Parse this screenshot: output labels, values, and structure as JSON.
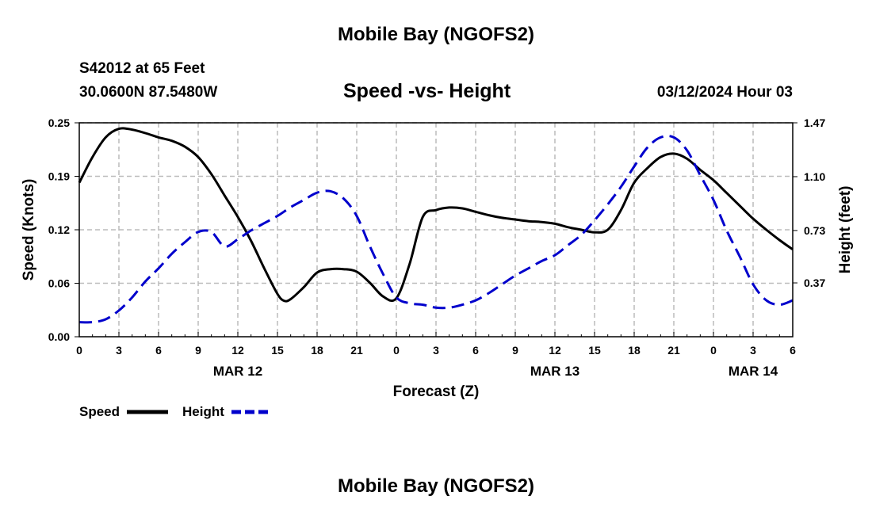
{
  "header": {
    "title": "Mobile Bay (NGOFS2)",
    "station": "S42012 at 65 Feet",
    "coords": "30.0600N  87.5480W",
    "subtitle": "Speed -vs- Height",
    "timestamp": "03/12/2024 Hour 03"
  },
  "footer": {
    "title": "Mobile Bay (NGOFS2)"
  },
  "colors": {
    "speed": "#000000",
    "height": "#0000cc",
    "grid": "#bbbbbb"
  },
  "chart_data": {
    "type": "line",
    "title": "Speed -vs- Height",
    "xlabel": "Forecast (Z)",
    "ylabel": "Speed (Knots)",
    "y2label": "Height (feet)",
    "x_range_hours": [
      0,
      54
    ],
    "x_ticks": [
      "0",
      "3",
      "6",
      "9",
      "12",
      "15",
      "18",
      "21",
      "0",
      "3",
      "6",
      "9",
      "12",
      "15",
      "18",
      "21",
      "0",
      "3",
      "6"
    ],
    "x_tick_hours": [
      0,
      3,
      6,
      9,
      12,
      15,
      18,
      21,
      24,
      27,
      30,
      33,
      36,
      39,
      42,
      45,
      48,
      51,
      54
    ],
    "date_labels": [
      {
        "label": "MAR 12",
        "hour": 12
      },
      {
        "label": "MAR 13",
        "hour": 36
      },
      {
        "label": "MAR 14",
        "hour": 51
      }
    ],
    "ylim": [
      0,
      0.25
    ],
    "y_ticks": [
      "0.00",
      "0.06",
      "0.12",
      "0.19",
      "0.25"
    ],
    "y_tick_values": [
      0,
      0.0625,
      0.125,
      0.1875,
      0.25
    ],
    "y2lim": [
      0,
      1.47
    ],
    "y2_ticks": [
      "0.37",
      "0.73",
      "1.10",
      "1.47"
    ],
    "y2_tick_values": [
      0.37,
      0.73,
      1.1,
      1.47
    ],
    "grid": true,
    "legend_position": "bottom-left",
    "series": [
      {
        "name": "Speed",
        "axis": "left",
        "style": "solid",
        "x": [
          0,
          1,
          2,
          3,
          4,
          5,
          6,
          7,
          8,
          9,
          10,
          11,
          12,
          13,
          14,
          15,
          15.5,
          16,
          17,
          18,
          19,
          20,
          21,
          22,
          23,
          24,
          25,
          26,
          27,
          28,
          29,
          30,
          31,
          32,
          33,
          34,
          35,
          36,
          37,
          38,
          39,
          40,
          41,
          42,
          43,
          44,
          45,
          46,
          47,
          48,
          49,
          50,
          51,
          52,
          53,
          54
        ],
        "values": [
          0.18,
          0.21,
          0.233,
          0.243,
          0.242,
          0.238,
          0.233,
          0.229,
          0.222,
          0.21,
          0.19,
          0.165,
          0.14,
          0.112,
          0.08,
          0.05,
          0.042,
          0.044,
          0.058,
          0.075,
          0.079,
          0.079,
          0.076,
          0.063,
          0.047,
          0.045,
          0.085,
          0.14,
          0.148,
          0.151,
          0.15,
          0.146,
          0.142,
          0.139,
          0.137,
          0.135,
          0.134,
          0.132,
          0.128,
          0.125,
          0.122,
          0.125,
          0.148,
          0.18,
          0.197,
          0.21,
          0.214,
          0.208,
          0.195,
          0.183,
          0.168,
          0.153,
          0.138,
          0.125,
          0.113,
          0.102
        ]
      },
      {
        "name": "Height",
        "axis": "right",
        "style": "dashed",
        "x": [
          0,
          1,
          2,
          3,
          4,
          5,
          6,
          7,
          8,
          9,
          10,
          11,
          12,
          13,
          14,
          15,
          16,
          17,
          18,
          19,
          20,
          21,
          22,
          23,
          24,
          25,
          26,
          27,
          28,
          29,
          30,
          31,
          32,
          33,
          34,
          35,
          36,
          37,
          38,
          39,
          40,
          41,
          42,
          43,
          44,
          45,
          46,
          47,
          48,
          49,
          50,
          51,
          52,
          53,
          54
        ],
        "values": [
          0.1,
          0.1,
          0.12,
          0.18,
          0.27,
          0.38,
          0.47,
          0.57,
          0.65,
          0.72,
          0.72,
          0.62,
          0.67,
          0.73,
          0.78,
          0.83,
          0.89,
          0.94,
          0.99,
          1.0,
          0.95,
          0.83,
          0.62,
          0.43,
          0.27,
          0.23,
          0.22,
          0.2,
          0.2,
          0.22,
          0.25,
          0.3,
          0.36,
          0.42,
          0.47,
          0.52,
          0.56,
          0.63,
          0.7,
          0.8,
          0.91,
          1.03,
          1.17,
          1.3,
          1.37,
          1.37,
          1.28,
          1.11,
          0.94,
          0.73,
          0.55,
          0.36,
          0.25,
          0.22,
          0.25
        ]
      }
    ]
  },
  "legend": {
    "speed_label": "Speed",
    "height_label": "Height"
  }
}
